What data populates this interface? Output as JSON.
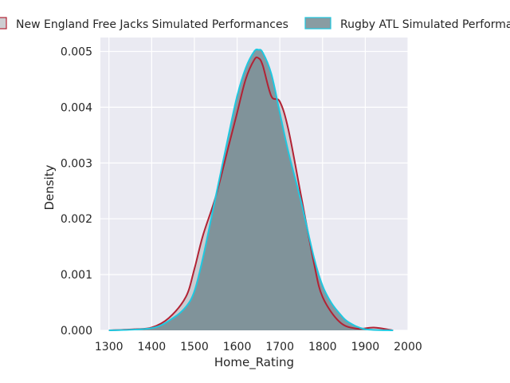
{
  "chart_data": {
    "type": "area",
    "title": "",
    "xlabel": "Home_Rating",
    "ylabel": "Density",
    "xlim": [
      1280,
      2000
    ],
    "ylim": [
      0,
      0.00525
    ],
    "xticks": [
      1300,
      1400,
      1500,
      1600,
      1700,
      1800,
      1900,
      2000
    ],
    "yticks": [
      0.0,
      0.001,
      0.002,
      0.003,
      0.004,
      0.005
    ],
    "xtick_labels": [
      "1300",
      "1400",
      "1500",
      "1600",
      "1700",
      "1800",
      "1900",
      "2000"
    ],
    "ytick_labels": [
      "0.000",
      "0.001",
      "0.002",
      "0.003",
      "0.004",
      "0.005"
    ],
    "grid": true,
    "legend_position": "top",
    "background": "#eaeaf2",
    "series": [
      {
        "name": "New England Free Jacks Simulated Performances",
        "color": "#b22234",
        "fill": "#c8c8cc",
        "x": [
          1300,
          1360,
          1400,
          1440,
          1480,
          1500,
          1520,
          1550,
          1580,
          1600,
          1620,
          1640,
          1650,
          1660,
          1680,
          1700,
          1720,
          1750,
          1780,
          1800,
          1840,
          1880,
          1920,
          1965
        ],
        "y": [
          0.0,
          2e-05,
          5e-05,
          0.00022,
          0.0006,
          0.0011,
          0.0017,
          0.0024,
          0.0033,
          0.0039,
          0.0045,
          0.00485,
          0.00488,
          0.00475,
          0.0042,
          0.0041,
          0.0036,
          0.0024,
          0.0012,
          0.0006,
          0.00015,
          3e-05,
          5e-05,
          0.0
        ]
      },
      {
        "name": "Rugby ATL Simulated Performances",
        "color": "#1fc8e0",
        "fill": "#6f868e",
        "x": [
          1300,
          1400,
          1450,
          1480,
          1500,
          1520,
          1550,
          1580,
          1600,
          1620,
          1640,
          1650,
          1660,
          1680,
          1700,
          1720,
          1750,
          1780,
          1800,
          1820,
          1840,
          1860,
          1900,
          1965
        ],
        "y": [
          0.0,
          4e-05,
          0.00022,
          0.00042,
          0.0007,
          0.0013,
          0.0024,
          0.0035,
          0.0042,
          0.0047,
          0.005,
          0.00503,
          0.00498,
          0.0046,
          0.0039,
          0.0032,
          0.0023,
          0.0013,
          0.0008,
          0.0005,
          0.0003,
          0.00015,
          2e-05,
          0.0
        ]
      }
    ]
  }
}
